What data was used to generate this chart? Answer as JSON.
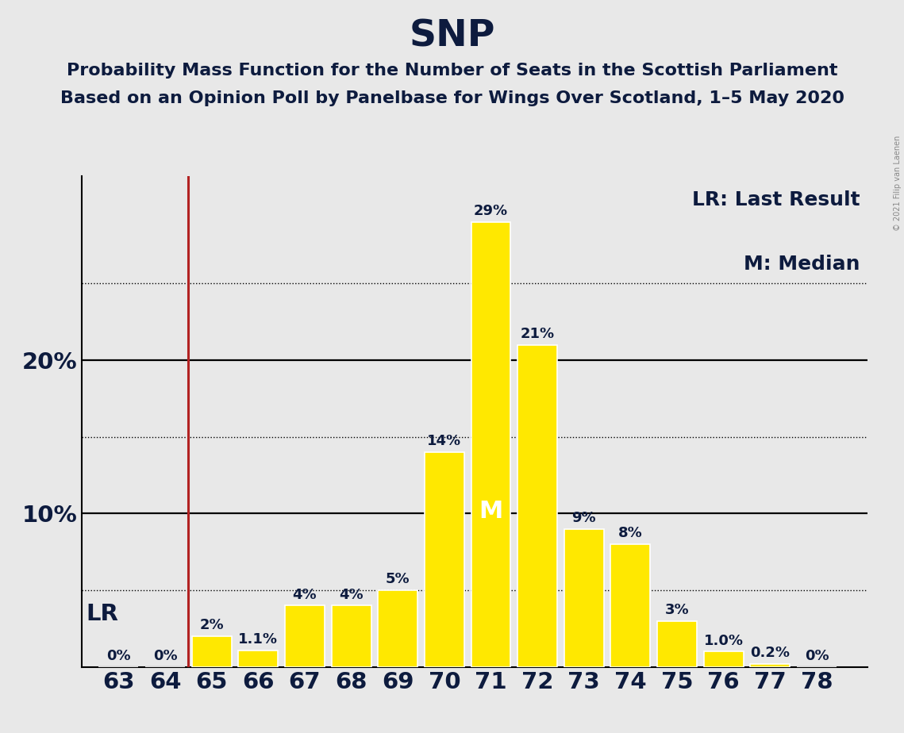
{
  "title": "SNP",
  "subtitle1": "Probability Mass Function for the Number of Seats in the Scottish Parliament",
  "subtitle2": "Based on an Opinion Poll by Panelbase for Wings Over Scotland, 1–5 May 2020",
  "copyright": "© 2021 Filip van Laenen",
  "seats": [
    63,
    64,
    65,
    66,
    67,
    68,
    69,
    70,
    71,
    72,
    73,
    74,
    75,
    76,
    77,
    78
  ],
  "probabilities": [
    0.0,
    0.0,
    2.0,
    1.1,
    4.0,
    4.0,
    5.0,
    14.0,
    29.0,
    21.0,
    9.0,
    8.0,
    3.0,
    1.0,
    0.2,
    0.0
  ],
  "bar_color": "#FFE800",
  "bar_edgecolor": "#FFFFFF",
  "lr_seat": 64.5,
  "lr_color": "#B22222",
  "median_seat": 71,
  "legend_lr": "LR: Last Result",
  "legend_m": "M: Median",
  "lr_label": "LR",
  "median_label": "M",
  "ylim": [
    0,
    32
  ],
  "background_color": "#E8E8E8",
  "title_fontsize": 34,
  "subtitle_fontsize": 16,
  "tick_fontsize": 21,
  "bar_label_fontsize": 13,
  "legend_fontsize": 18,
  "lr_label_fontsize": 21,
  "median_label_fontsize": 22,
  "grid_dotted_levels": [
    5,
    15,
    25
  ],
  "grid_solid_levels": [
    10,
    20
  ],
  "text_color": "#0d1b3e",
  "copyright_color": "#888888"
}
